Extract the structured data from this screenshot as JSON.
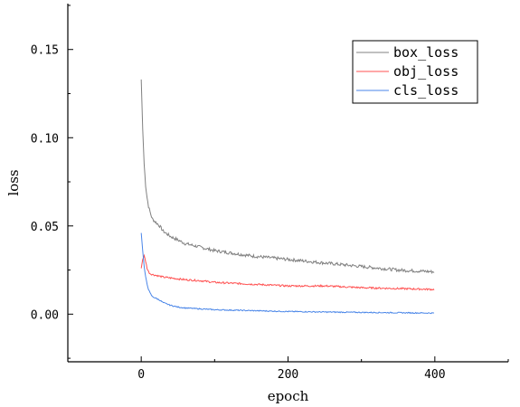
{
  "chart_data": {
    "type": "line",
    "title": "",
    "xlabel": "epoch",
    "ylabel": "loss",
    "xlim": [
      -100,
      500
    ],
    "ylim": [
      -0.027,
      0.176
    ],
    "xticks": [
      0,
      200,
      400
    ],
    "xtick_labels": [
      "0",
      "200",
      "400"
    ],
    "yticks": [
      0.0,
      0.05,
      0.1,
      0.15
    ],
    "ytick_labels": [
      "0.00",
      "0.05",
      "0.10",
      "0.15"
    ],
    "grid": false,
    "legend_position": "top-right",
    "series": [
      {
        "name": "box_loss",
        "color": "#808080",
        "x": [
          0,
          2,
          4,
          6,
          8,
          10,
          12,
          15,
          20,
          25,
          30,
          40,
          50,
          60,
          80,
          100,
          150,
          200,
          250,
          300,
          350,
          399
        ],
        "y": [
          0.133,
          0.105,
          0.085,
          0.073,
          0.066,
          0.061,
          0.058,
          0.054,
          0.052,
          0.05,
          0.047,
          0.044,
          0.042,
          0.04,
          0.038,
          0.036,
          0.033,
          0.031,
          0.029,
          0.027,
          0.025,
          0.024
        ]
      },
      {
        "name": "obj_loss",
        "color": "#ff5050",
        "x": [
          0,
          2,
          4,
          6,
          8,
          10,
          12,
          15,
          20,
          30,
          40,
          50,
          60,
          80,
          100,
          150,
          200,
          250,
          300,
          350,
          399
        ],
        "y": [
          0.026,
          0.031,
          0.033,
          0.03,
          0.026,
          0.024,
          0.023,
          0.0225,
          0.022,
          0.021,
          0.0205,
          0.02,
          0.0195,
          0.019,
          0.018,
          0.017,
          0.016,
          0.016,
          0.015,
          0.0145,
          0.014
        ]
      },
      {
        "name": "cls_loss",
        "color": "#4a86e8",
        "x": [
          0,
          2,
          4,
          6,
          8,
          10,
          12,
          15,
          20,
          25,
          30,
          40,
          50,
          60,
          80,
          100,
          150,
          200,
          250,
          300,
          350,
          399
        ],
        "y": [
          0.046,
          0.036,
          0.027,
          0.021,
          0.017,
          0.014,
          0.012,
          0.01,
          0.009,
          0.008,
          0.0065,
          0.005,
          0.004,
          0.0035,
          0.003,
          0.0025,
          0.002,
          0.0015,
          0.0012,
          0.001,
          0.0008,
          0.0006
        ]
      }
    ]
  }
}
